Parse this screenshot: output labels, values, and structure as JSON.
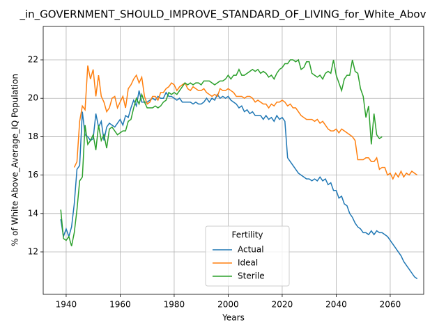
{
  "chart_data": {
    "type": "line",
    "title": "_in_GOVERNMENT_SHOULD_IMPROVE_STANDARD_OF_LIVING_for_White_Abov",
    "x_label": "Years",
    "y_label": "% of White Above_Average_IQ Population",
    "legend_title": "Fertility",
    "legend": "lower center",
    "grid": true,
    "xlim": [
      1931.5,
      2072.4
    ],
    "ylim": [
      9.79,
      23.74
    ],
    "xticks": [
      1940,
      1960,
      1980,
      2000,
      2020,
      2040,
      2060
    ],
    "yticks": [
      12,
      14,
      16,
      18,
      20,
      22
    ],
    "x": [
      1938,
      1939,
      1940,
      1941,
      1942,
      1943,
      1944,
      1945,
      1946,
      1947,
      1948,
      1949,
      1950,
      1951,
      1952,
      1953,
      1954,
      1955,
      1956,
      1957,
      1958,
      1959,
      1960,
      1961,
      1962,
      1963,
      1964,
      1965,
      1966,
      1967,
      1968,
      1969,
      1970,
      1971,
      1972,
      1973,
      1974,
      1975,
      1976,
      1977,
      1978,
      1979,
      1980,
      1981,
      1982,
      1983,
      1984,
      1985,
      1986,
      1987,
      1988,
      1989,
      1990,
      1991,
      1992,
      1993,
      1994,
      1995,
      1996,
      1997,
      1998,
      1999,
      2000,
      2001,
      2002,
      2003,
      2004,
      2005,
      2006,
      2007,
      2008,
      2009,
      2010,
      2011,
      2012,
      2013,
      2014,
      2015,
      2016,
      2017,
      2018,
      2019,
      2020,
      2021,
      2022,
      2023,
      2024,
      2025,
      2026,
      2027,
      2028,
      2029,
      2030,
      2031,
      2032,
      2033,
      2034,
      2035,
      2036,
      2037,
      2038,
      2039,
      2040,
      2041,
      2042,
      2043,
      2044,
      2045,
      2046,
      2047,
      2048,
      2049,
      2050,
      2051,
      2052,
      2053,
      2054,
      2055,
      2056,
      2057,
      2058,
      2059,
      2060,
      2061,
      2062,
      2063,
      2064,
      2065,
      2066,
      2067,
      2068,
      2069,
      2070
    ],
    "series": [
      {
        "name": "Actual",
        "color": "#1f77b4",
        "values": [
          13.7,
          12.8,
          13.2,
          12.8,
          13.3,
          14.5,
          16.3,
          16.5,
          19.3,
          18.1,
          18.0,
          17.8,
          17.9,
          19.2,
          18.5,
          18.8,
          17.8,
          18.5,
          18.7,
          18.6,
          18.5,
          18.7,
          18.9,
          18.6,
          19.1,
          19.0,
          19.5,
          19.9,
          19.6,
          20.4,
          19.8,
          19.8,
          19.8,
          19.9,
          20.0,
          19.9,
          20.1,
          20.0,
          20.0,
          20.3,
          20.1,
          20.1,
          20.0,
          19.9,
          20.0,
          19.8,
          19.8,
          19.8,
          19.8,
          19.7,
          19.8,
          19.7,
          19.7,
          19.8,
          20.0,
          19.8,
          20.0,
          19.9,
          20.2,
          20.0,
          20.1,
          20.0,
          20.1,
          19.9,
          19.8,
          19.7,
          19.5,
          19.6,
          19.3,
          19.4,
          19.2,
          19.3,
          19.1,
          19.1,
          19.1,
          18.9,
          19.1,
          18.9,
          19.0,
          18.8,
          19.1,
          18.9,
          19.0,
          18.8,
          16.9,
          16.7,
          16.5,
          16.3,
          16.1,
          16.0,
          15.9,
          15.8,
          15.8,
          15.7,
          15.8,
          15.7,
          15.9,
          15.7,
          15.8,
          15.5,
          15.6,
          15.2,
          15.2,
          14.8,
          14.9,
          14.5,
          14.4,
          14.0,
          13.8,
          13.5,
          13.3,
          13.2,
          13.0,
          13.0,
          12.9,
          13.1,
          12.9,
          13.1,
          13.0,
          13.0,
          12.9,
          12.8,
          12.6,
          12.4,
          12.2,
          12.0,
          11.8,
          11.5,
          11.3,
          11.1,
          10.9,
          10.7,
          10.6
        ]
      },
      {
        "name": "Ideal",
        "color": "#ff7f0e",
        "values": [
          null,
          null,
          null,
          null,
          null,
          16.4,
          16.7,
          18.8,
          19.6,
          19.4,
          21.7,
          21.0,
          21.5,
          20.1,
          21.2,
          20.1,
          19.8,
          19.3,
          19.5,
          20.0,
          20.1,
          19.5,
          19.8,
          20.1,
          19.5,
          20.5,
          20.7,
          21.0,
          21.2,
          20.8,
          21.1,
          20.1,
          19.7,
          19.8,
          20.1,
          20.1,
          19.9,
          20.3,
          20.3,
          20.5,
          20.6,
          20.8,
          20.7,
          20.4,
          20.6,
          20.7,
          20.8,
          20.5,
          20.4,
          20.6,
          20.5,
          20.4,
          20.4,
          20.5,
          20.3,
          20.2,
          20.1,
          20.2,
          20.1,
          20.5,
          20.4,
          20.4,
          20.5,
          20.4,
          20.3,
          20.1,
          20.1,
          20.1,
          20.0,
          20.1,
          20.1,
          20.0,
          19.8,
          19.9,
          19.8,
          19.7,
          19.7,
          19.5,
          19.7,
          19.6,
          19.8,
          19.8,
          19.9,
          19.8,
          19.6,
          19.7,
          19.5,
          19.5,
          19.3,
          19.1,
          19.0,
          18.9,
          18.9,
          18.9,
          18.8,
          18.9,
          18.7,
          18.8,
          18.6,
          18.4,
          18.3,
          18.3,
          18.4,
          18.2,
          18.4,
          18.3,
          18.2,
          18.1,
          18.0,
          17.8,
          16.8,
          16.8,
          16.8,
          16.9,
          16.9,
          16.7,
          16.7,
          16.9,
          16.3,
          16.4,
          16.4,
          16.0,
          16.1,
          15.8,
          16.1,
          15.9,
          16.2,
          15.9,
          16.1,
          16.0,
          16.2,
          16.1,
          16.0
        ]
      },
      {
        "name": "Sterile",
        "color": "#2ca02c",
        "values": [
          14.2,
          12.7,
          12.6,
          12.8,
          12.3,
          13.0,
          14.2,
          15.7,
          15.9,
          18.6,
          17.6,
          17.8,
          18.1,
          17.3,
          18.6,
          17.8,
          18.1,
          17.4,
          18.4,
          18.5,
          18.3,
          18.1,
          18.2,
          18.3,
          18.3,
          18.8,
          18.9,
          19.5,
          20.0,
          19.7,
          20.2,
          19.8,
          19.5,
          19.5,
          19.5,
          19.6,
          19.5,
          19.6,
          19.8,
          19.9,
          20.3,
          20.2,
          20.3,
          20.2,
          20.4,
          20.6,
          20.8,
          20.7,
          20.8,
          20.7,
          20.8,
          20.8,
          20.7,
          20.9,
          20.9,
          20.9,
          20.8,
          20.7,
          20.8,
          20.9,
          20.9,
          21.0,
          21.2,
          21.0,
          21.2,
          21.2,
          21.5,
          21.2,
          21.2,
          21.3,
          21.4,
          21.5,
          21.4,
          21.5,
          21.3,
          21.4,
          21.3,
          21.1,
          21.2,
          21.0,
          21.3,
          21.5,
          21.6,
          21.8,
          21.8,
          22.0,
          22.0,
          21.9,
          22.0,
          21.5,
          21.6,
          21.9,
          21.9,
          21.3,
          21.2,
          21.1,
          21.2,
          21.0,
          21.3,
          21.4,
          21.3,
          22.0,
          21.2,
          20.8,
          20.4,
          21.0,
          21.2,
          21.2,
          22.0,
          21.4,
          21.3,
          20.5,
          20.1,
          19.0,
          19.6,
          17.6,
          19.2,
          18.1,
          17.9,
          18.0,
          null,
          null,
          null,
          null,
          null,
          null,
          null,
          null,
          null,
          null,
          null,
          null,
          null
        ]
      }
    ]
  }
}
